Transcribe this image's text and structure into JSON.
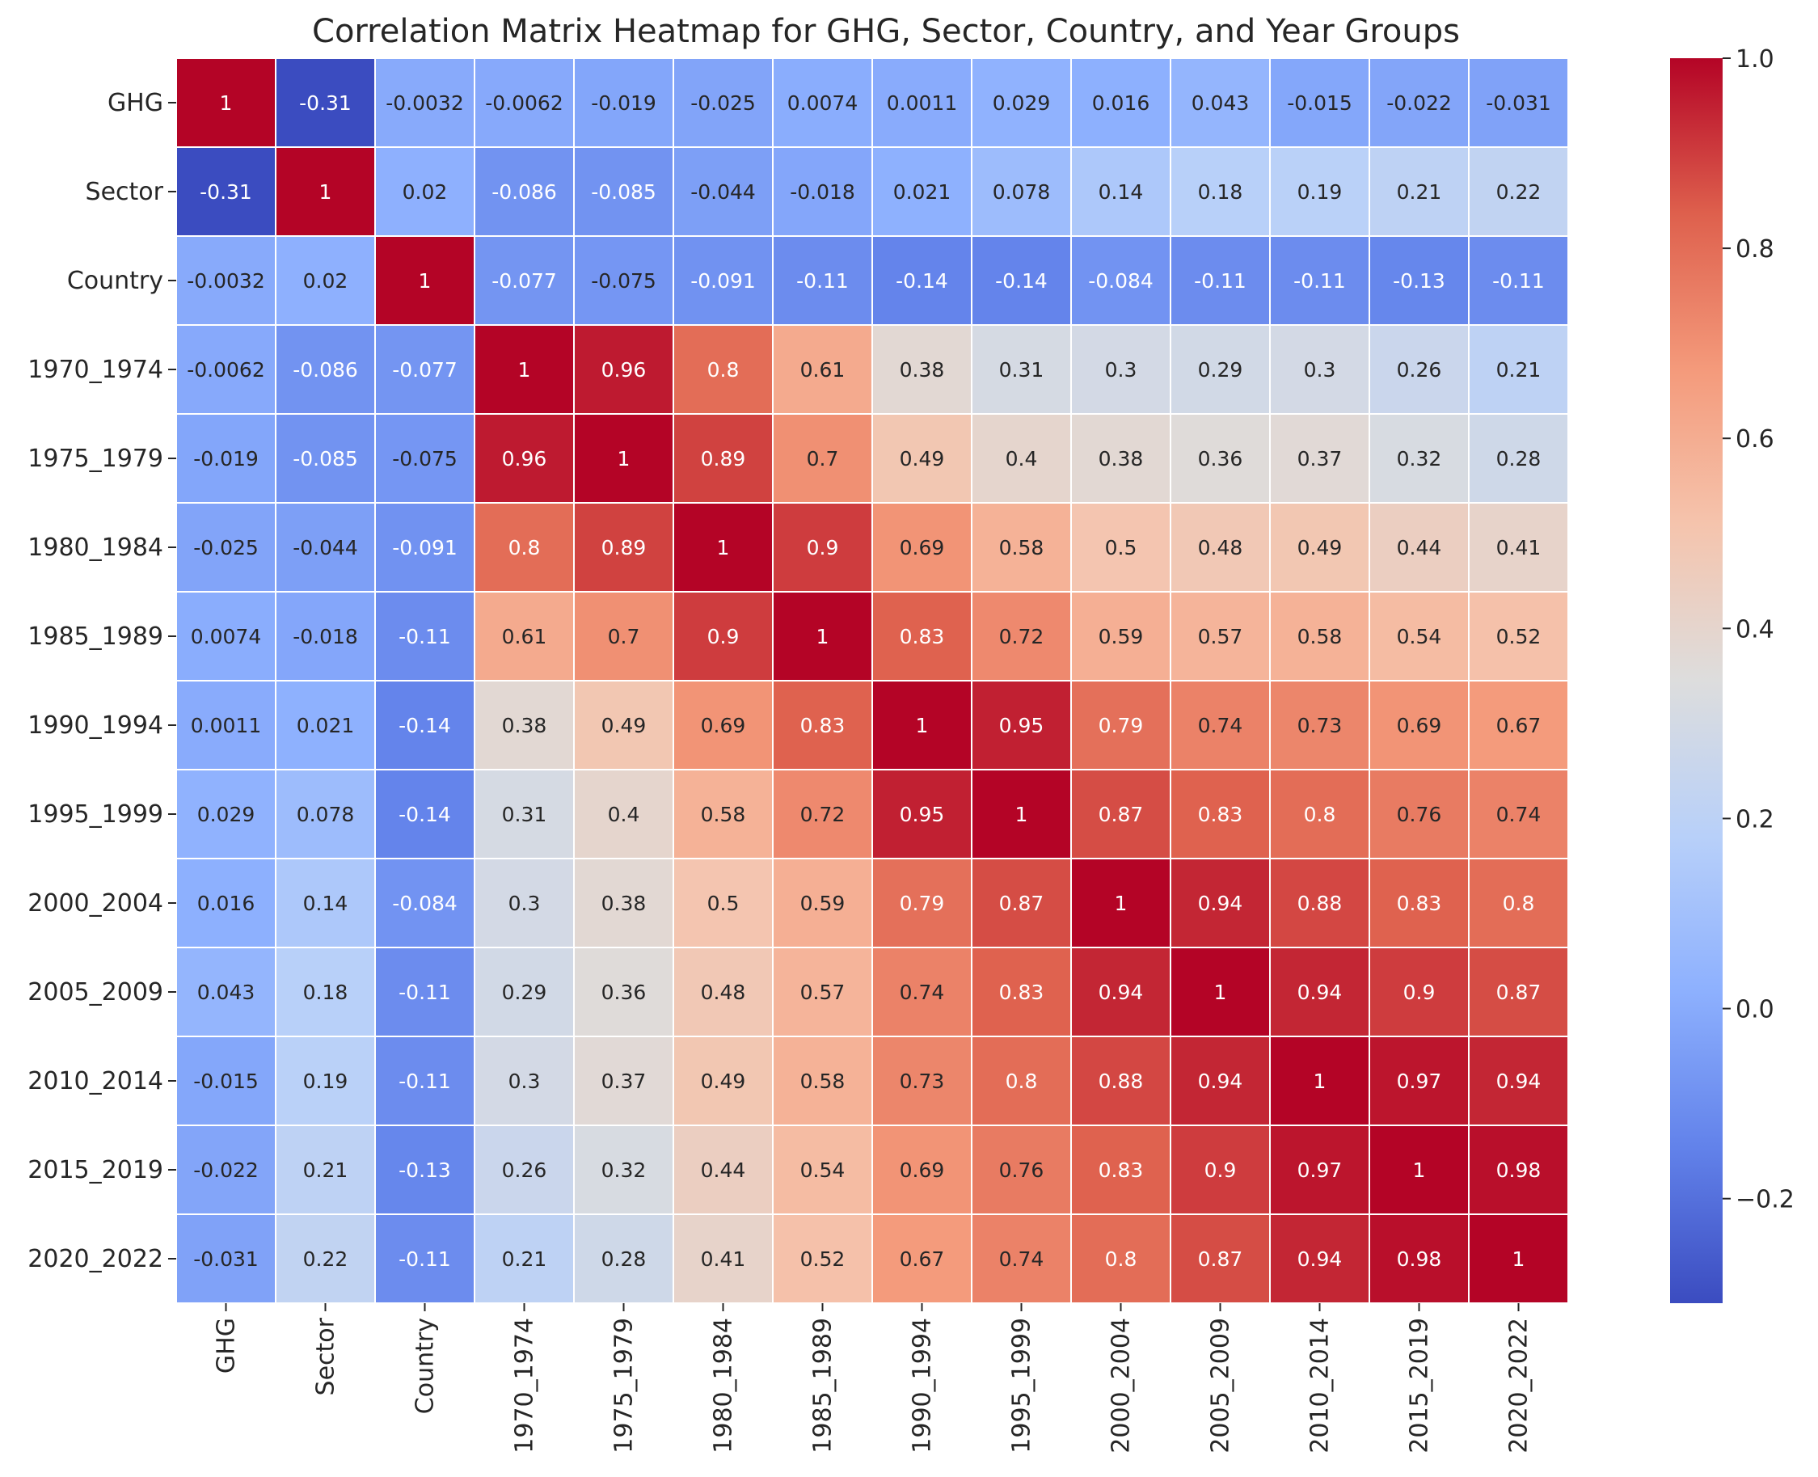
{
  "chart_data": {
    "type": "heatmap",
    "title": "Correlation Matrix Heatmap for GHG, Sector, Country, and Year Groups",
    "xlabel": "",
    "ylabel": "",
    "row_labels": [
      "GHG",
      "Sector",
      "Country",
      "1970_1974",
      "1975_1979",
      "1980_1984",
      "1985_1989",
      "1990_1994",
      "1995_1999",
      "2000_2004",
      "2005_2009",
      "2010_2014",
      "2015_2019",
      "2020_2022"
    ],
    "col_labels": [
      "GHG",
      "Sector",
      "Country",
      "1970_1974",
      "1975_1979",
      "1980_1984",
      "1985_1989",
      "1990_1994",
      "1995_1999",
      "2000_2004",
      "2005_2009",
      "2010_2014",
      "2015_2019",
      "2020_2022"
    ],
    "values": [
      [
        1,
        -0.31,
        -0.0032,
        -0.0062,
        -0.019,
        -0.025,
        0.0074,
        0.0011,
        0.029,
        0.016,
        0.043,
        -0.015,
        -0.022,
        -0.031
      ],
      [
        -0.31,
        1,
        0.02,
        -0.086,
        -0.085,
        -0.044,
        -0.018,
        0.021,
        0.078,
        0.14,
        0.18,
        0.19,
        0.21,
        0.22
      ],
      [
        -0.0032,
        0.02,
        1,
        -0.077,
        -0.075,
        -0.091,
        -0.11,
        -0.14,
        -0.14,
        -0.084,
        -0.11,
        -0.11,
        -0.13,
        -0.11
      ],
      [
        -0.0062,
        -0.086,
        -0.077,
        1,
        0.96,
        0.8,
        0.61,
        0.38,
        0.31,
        0.3,
        0.29,
        0.3,
        0.26,
        0.21
      ],
      [
        -0.019,
        -0.085,
        -0.075,
        0.96,
        1,
        0.89,
        0.7,
        0.49,
        0.4,
        0.38,
        0.36,
        0.37,
        0.32,
        0.28
      ],
      [
        -0.025,
        -0.044,
        -0.091,
        0.8,
        0.89,
        1,
        0.9,
        0.69,
        0.58,
        0.5,
        0.48,
        0.49,
        0.44,
        0.41
      ],
      [
        0.0074,
        -0.018,
        -0.11,
        0.61,
        0.7,
        0.9,
        1,
        0.83,
        0.72,
        0.59,
        0.57,
        0.58,
        0.54,
        0.52
      ],
      [
        0.0011,
        0.021,
        -0.14,
        0.38,
        0.49,
        0.69,
        0.83,
        1,
        0.95,
        0.79,
        0.74,
        0.73,
        0.69,
        0.67
      ],
      [
        0.029,
        0.078,
        -0.14,
        0.31,
        0.4,
        0.58,
        0.72,
        0.95,
        1,
        0.87,
        0.83,
        0.8,
        0.76,
        0.74
      ],
      [
        0.016,
        0.14,
        -0.084,
        0.3,
        0.38,
        0.5,
        0.59,
        0.79,
        0.87,
        1,
        0.94,
        0.88,
        0.83,
        0.8
      ],
      [
        0.043,
        0.18,
        -0.11,
        0.29,
        0.36,
        0.48,
        0.57,
        0.74,
        0.83,
        0.94,
        1,
        0.94,
        0.9,
        0.87
      ],
      [
        -0.015,
        0.19,
        -0.11,
        0.3,
        0.37,
        0.49,
        0.58,
        0.73,
        0.8,
        0.88,
        0.94,
        1,
        0.97,
        0.94
      ],
      [
        -0.022,
        0.21,
        -0.13,
        0.26,
        0.32,
        0.44,
        0.54,
        0.69,
        0.76,
        0.83,
        0.9,
        0.97,
        1,
        0.98
      ],
      [
        -0.031,
        0.22,
        -0.11,
        0.21,
        0.28,
        0.41,
        0.52,
        0.67,
        0.74,
        0.8,
        0.87,
        0.94,
        0.98,
        1
      ]
    ],
    "colormap": "coolwarm",
    "colorbar": {
      "range": [
        -0.31,
        1.0
      ],
      "ticks": [
        -0.2,
        0.0,
        0.2,
        0.4,
        0.6,
        0.8,
        1.0
      ],
      "tick_labels": [
        "−0.2",
        "0.0",
        "0.2",
        "0.4",
        "0.6",
        "0.8",
        "1.0"
      ]
    },
    "grid": false,
    "annotations": true,
    "legend": "colorbar-right"
  }
}
